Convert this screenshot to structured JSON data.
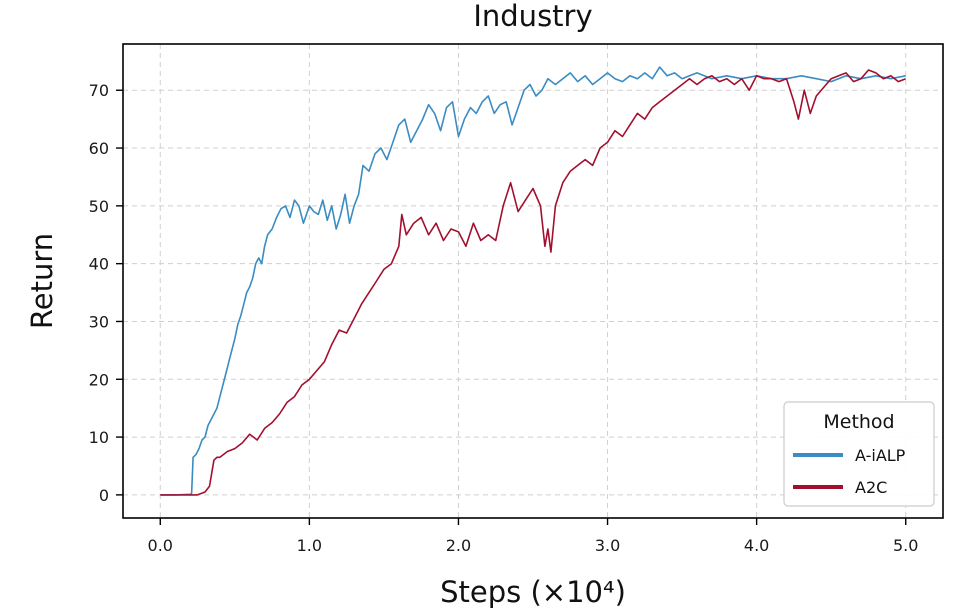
{
  "chart_data": {
    "type": "line",
    "title": "Industry",
    "xlabel": "Steps (×10⁴)",
    "ylabel": "Return",
    "xlim": [
      -0.25,
      5.25
    ],
    "ylim": [
      -4,
      78
    ],
    "x_ticks": [
      0.0,
      1.0,
      2.0,
      3.0,
      4.0,
      5.0
    ],
    "x_tick_labels": [
      "0.0",
      "1.0",
      "2.0",
      "3.0",
      "4.0",
      "5.0"
    ],
    "y_ticks": [
      0,
      10,
      20,
      30,
      40,
      50,
      60,
      70
    ],
    "y_tick_labels": [
      "0",
      "10",
      "20",
      "30",
      "40",
      "50",
      "60",
      "70"
    ],
    "grid": true,
    "legend": {
      "title": "Method",
      "placement": "lower-right"
    },
    "series": [
      {
        "name": "A-iALP",
        "color": "#3a8cc2",
        "x": [
          0.0,
          0.1,
          0.2,
          0.21,
          0.22,
          0.24,
          0.26,
          0.28,
          0.3,
          0.32,
          0.35,
          0.38,
          0.41,
          0.44,
          0.47,
          0.5,
          0.52,
          0.54,
          0.56,
          0.58,
          0.6,
          0.62,
          0.64,
          0.66,
          0.68,
          0.7,
          0.72,
          0.75,
          0.78,
          0.81,
          0.84,
          0.87,
          0.9,
          0.93,
          0.96,
          1.0,
          1.03,
          1.06,
          1.09,
          1.12,
          1.15,
          1.18,
          1.21,
          1.24,
          1.27,
          1.3,
          1.33,
          1.36,
          1.4,
          1.44,
          1.48,
          1.52,
          1.56,
          1.6,
          1.64,
          1.68,
          1.72,
          1.76,
          1.8,
          1.84,
          1.88,
          1.92,
          1.96,
          2.0,
          2.04,
          2.08,
          2.12,
          2.16,
          2.2,
          2.24,
          2.28,
          2.32,
          2.36,
          2.4,
          2.44,
          2.48,
          2.52,
          2.56,
          2.6,
          2.65,
          2.7,
          2.75,
          2.8,
          2.85,
          2.9,
          2.95,
          3.0,
          3.05,
          3.1,
          3.15,
          3.2,
          3.25,
          3.3,
          3.35,
          3.4,
          3.45,
          3.5,
          3.55,
          3.6,
          3.7,
          3.8,
          3.9,
          4.0,
          4.1,
          4.2,
          4.3,
          4.4,
          4.5,
          4.6,
          4.7,
          4.8,
          4.9,
          5.0
        ],
        "values": [
          0.0,
          0.0,
          0.1,
          0.2,
          6.5,
          7.0,
          8.0,
          9.5,
          10.0,
          12.0,
          13.5,
          15.0,
          18.0,
          21.0,
          24.0,
          27.0,
          29.5,
          31.0,
          33.0,
          35.0,
          36.0,
          37.5,
          40.0,
          41.0,
          40.0,
          43.0,
          45.0,
          46.0,
          48.0,
          49.5,
          50.0,
          48.0,
          51.0,
          50.0,
          47.0,
          50.0,
          49.0,
          48.5,
          51.0,
          47.5,
          50.0,
          46.0,
          48.5,
          52.0,
          47.0,
          50.0,
          52.0,
          57.0,
          56.0,
          59.0,
          60.0,
          58.0,
          61.0,
          64.0,
          65.0,
          61.0,
          63.0,
          65.0,
          67.5,
          66.0,
          63.0,
          67.0,
          68.0,
          62.0,
          65.0,
          67.0,
          66.0,
          68.0,
          69.0,
          66.0,
          67.5,
          68.0,
          64.0,
          67.0,
          70.0,
          71.0,
          69.0,
          70.0,
          72.0,
          71.0,
          72.0,
          73.0,
          71.5,
          72.5,
          71.0,
          72.0,
          73.0,
          72.0,
          71.5,
          72.5,
          72.0,
          73.0,
          72.0,
          74.0,
          72.5,
          73.0,
          72.0,
          72.5,
          73.0,
          72.0,
          72.5,
          72.0,
          72.5,
          72.0,
          72.0,
          72.5,
          72.0,
          71.5,
          72.5,
          72.0,
          72.5,
          72.0,
          72.5
        ]
      },
      {
        "name": "A2C",
        "color": "#a3102f",
        "x": [
          0.0,
          0.1,
          0.2,
          0.25,
          0.3,
          0.33,
          0.36,
          0.38,
          0.4,
          0.45,
          0.5,
          0.55,
          0.6,
          0.65,
          0.7,
          0.75,
          0.8,
          0.85,
          0.9,
          0.95,
          1.0,
          1.05,
          1.1,
          1.15,
          1.2,
          1.25,
          1.3,
          1.35,
          1.4,
          1.45,
          1.5,
          1.55,
          1.6,
          1.62,
          1.65,
          1.7,
          1.75,
          1.8,
          1.85,
          1.9,
          1.95,
          2.0,
          2.05,
          2.1,
          2.15,
          2.2,
          2.25,
          2.3,
          2.35,
          2.4,
          2.45,
          2.5,
          2.55,
          2.58,
          2.6,
          2.62,
          2.65,
          2.7,
          2.75,
          2.8,
          2.85,
          2.9,
          2.95,
          3.0,
          3.05,
          3.1,
          3.15,
          3.2,
          3.25,
          3.3,
          3.35,
          3.4,
          3.45,
          3.5,
          3.55,
          3.6,
          3.65,
          3.7,
          3.75,
          3.8,
          3.85,
          3.9,
          3.95,
          4.0,
          4.05,
          4.1,
          4.15,
          4.2,
          4.25,
          4.28,
          4.32,
          4.36,
          4.4,
          4.45,
          4.5,
          4.55,
          4.6,
          4.65,
          4.7,
          4.75,
          4.8,
          4.85,
          4.9,
          4.95,
          5.0
        ],
        "values": [
          0.0,
          0.0,
          0.0,
          0.0,
          0.5,
          1.5,
          6.0,
          6.5,
          6.5,
          7.5,
          8.0,
          9.0,
          10.5,
          9.5,
          11.5,
          12.5,
          14.0,
          16.0,
          17.0,
          19.0,
          20.0,
          21.5,
          23.0,
          26.0,
          28.5,
          28.0,
          30.5,
          33.0,
          35.0,
          37.0,
          39.0,
          40.0,
          43.0,
          48.5,
          45.0,
          47.0,
          48.0,
          45.0,
          47.0,
          44.0,
          46.0,
          45.5,
          43.0,
          47.0,
          44.0,
          45.0,
          44.0,
          50.0,
          54.0,
          49.0,
          51.0,
          53.0,
          50.0,
          43.0,
          46.0,
          42.0,
          50.0,
          54.0,
          56.0,
          57.0,
          58.0,
          57.0,
          60.0,
          61.0,
          63.0,
          62.0,
          64.0,
          66.0,
          65.0,
          67.0,
          68.0,
          69.0,
          70.0,
          71.0,
          72.0,
          71.0,
          72.0,
          72.5,
          71.5,
          72.0,
          71.0,
          72.0,
          70.0,
          72.5,
          72.0,
          72.0,
          71.5,
          72.0,
          68.0,
          65.0,
          70.0,
          66.0,
          69.0,
          70.5,
          72.0,
          72.5,
          73.0,
          71.5,
          72.0,
          73.5,
          73.0,
          72.0,
          72.5,
          71.5,
          72.0
        ]
      }
    ]
  }
}
